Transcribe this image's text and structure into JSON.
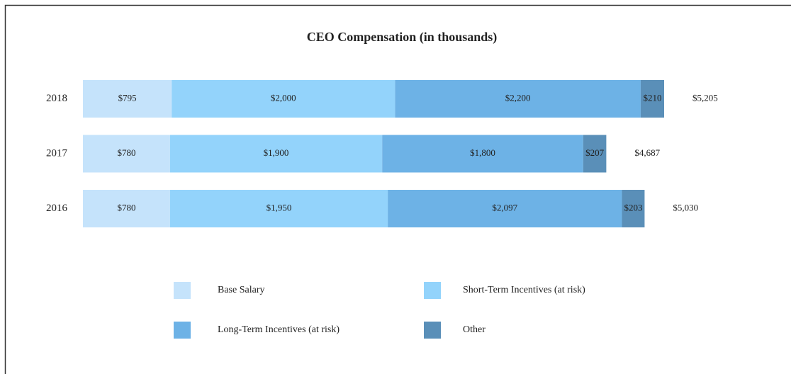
{
  "chart_data": {
    "type": "stacked-bar-horizontal",
    "title": "CEO Compensation (in thousands)",
    "categories": [
      "2018",
      "2017",
      "2016"
    ],
    "series": [
      {
        "name": "Base Salary",
        "color": "#c5e3fb",
        "values": [
          795,
          780,
          780
        ],
        "value_labels": [
          "$795",
          "$780",
          "$780"
        ]
      },
      {
        "name": "Short-Term Incentives (at risk)",
        "color": "#93d3fb",
        "values": [
          2000,
          1900,
          1950
        ],
        "value_labels": [
          "$2,000",
          "$1,900",
          "$1,950"
        ]
      },
      {
        "name": "Long-Term Incentives (at risk)",
        "color": "#6db2e6",
        "values": [
          2200,
          1800,
          2097
        ],
        "value_labels": [
          "$2,200",
          "$1,800",
          "$2,097"
        ]
      },
      {
        "name": "Other",
        "color": "#5a8fb8",
        "values": [
          210,
          207,
          203
        ],
        "value_labels": [
          "$210",
          "$207",
          "$203"
        ]
      }
    ],
    "totals": [
      5205,
      4687,
      5030
    ],
    "total_labels": [
      "$5,205",
      "$4,687",
      "$5,030"
    ]
  }
}
